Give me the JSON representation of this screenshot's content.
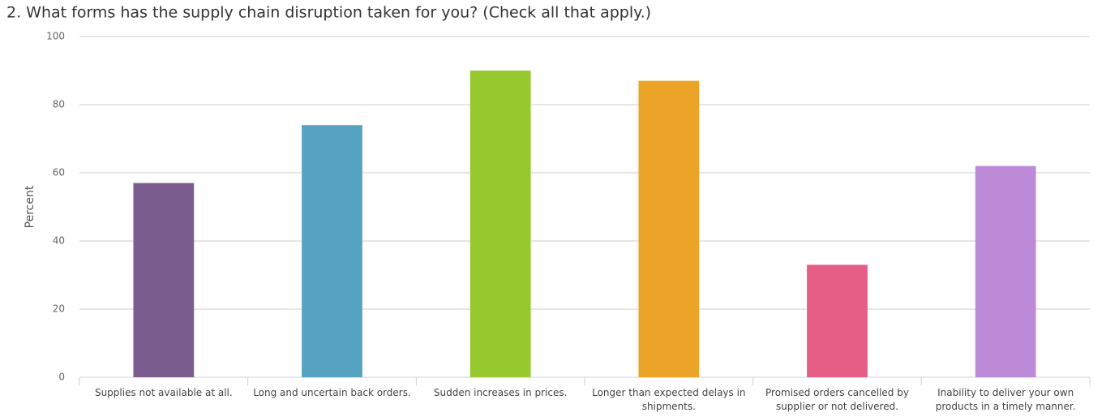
{
  "chart_data": {
    "type": "bar",
    "title": "2. What forms has the supply chain disruption taken for you? (Check all that apply.)",
    "y_label": "Percent",
    "categories": [
      "Supplies not available at all.",
      "Long and uncertain back orders.",
      "Sudden increases in prices.",
      "Longer than expected delays in shipments.",
      "Promised orders cancelled by supplier or not delivered.",
      "Inability to deliver your own products in a timely manner."
    ],
    "values": [
      57,
      74,
      90,
      87,
      33,
      62
    ],
    "colors": [
      "#7b5e8f",
      "#55a3c1",
      "#97c92e",
      "#eca428",
      "#e45e85",
      "#be8bd8"
    ],
    "ylim": [
      0,
      100
    ],
    "yticks": [
      0,
      20,
      40,
      60,
      80,
      100
    ],
    "grid": true
  }
}
